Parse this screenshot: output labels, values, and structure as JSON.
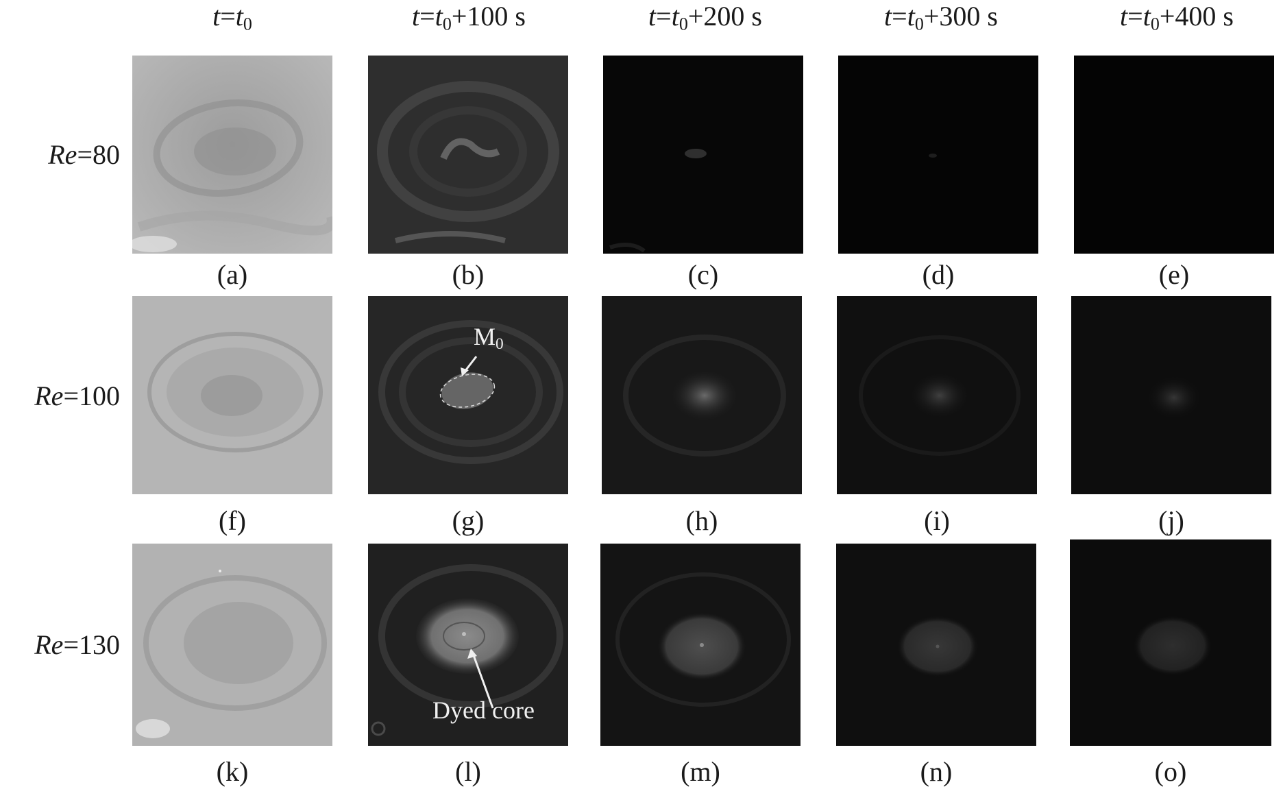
{
  "column_headers": [
    {
      "t": "t",
      "eq": "=",
      "t0": "t",
      "sub": "0",
      "suffix": ""
    },
    {
      "t": "t",
      "eq": "=",
      "t0": "t",
      "sub": "0",
      "suffix": "+100 s"
    },
    {
      "t": "t",
      "eq": "=",
      "t0": "t",
      "sub": "0",
      "suffix": "+200 s"
    },
    {
      "t": "t",
      "eq": "=",
      "t0": "t",
      "sub": "0",
      "suffix": "+300 s"
    },
    {
      "t": "t",
      "eq": "=",
      "t0": "t",
      "sub": "0",
      "suffix": "+400 s"
    }
  ],
  "row_labels": [
    {
      "re": "Re",
      "value": "=80"
    },
    {
      "re": "Re",
      "value": "=100"
    },
    {
      "re": "Re",
      "value": "=130"
    }
  ],
  "panel_captions": [
    "(a)",
    "(b)",
    "(c)",
    "(d)",
    "(e)",
    "(f)",
    "(g)",
    "(h)",
    "(i)",
    "(j)",
    "(k)",
    "(l)",
    "(m)",
    "(n)",
    "(o)"
  ],
  "annotations": {
    "m0": {
      "main": "M",
      "sub": "0"
    },
    "dyed_core": "Dyed core"
  },
  "panel_brightness": {
    "row_re80": [
      0.72,
      0.22,
      0.02,
      0.01,
      0.005
    ],
    "row_re100": [
      0.72,
      0.17,
      0.1,
      0.06,
      0.05
    ],
    "row_re130": [
      0.72,
      0.14,
      0.08,
      0.06,
      0.05
    ]
  },
  "colors": {
    "background": "#ffffff",
    "text": "#1a1a1a",
    "annotation": "#f0f0f0"
  }
}
